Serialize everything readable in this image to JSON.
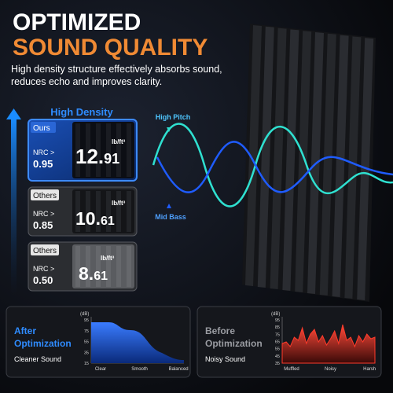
{
  "header": {
    "title_line1": "OPTIMIZED",
    "title_line2": "SOUND QUALITY",
    "subtitle": "High density structure effectively absorbs sound, reduces echo and improves clarity."
  },
  "density": {
    "label": "High Density",
    "cards": [
      {
        "tag": "Ours",
        "nrc_label": "NRC >",
        "nrc": "0.95",
        "density_main": "12.",
        "density_sub": "91",
        "unit": "lb/ft³"
      },
      {
        "tag": "Others",
        "nrc_label": "NRC >",
        "nrc": "0.85",
        "density_main": "10.",
        "density_sub": "61",
        "unit": "lb/ft³"
      },
      {
        "tag": "Others",
        "nrc_label": "NRC >",
        "nrc": "0.50",
        "density_main": "8.",
        "density_sub": "61",
        "unit": "lb/ft³"
      }
    ]
  },
  "wave": {
    "top_label": "High Pitch",
    "bottom_label": "Mid Bass"
  },
  "panels": [
    {
      "title_line1": "After",
      "title_line2": "Optimization",
      "caption": "Cleaner Sound",
      "axis_unit": "(dB)",
      "yticks": [
        "95",
        "75",
        "55",
        "35",
        "15"
      ],
      "xlabels": [
        "Clear",
        "Smooth",
        "Balanced"
      ]
    },
    {
      "title_line1": "Before",
      "title_line2": "Optimization",
      "caption": "Noisy Sound",
      "axis_unit": "(dB)",
      "yticks": [
        "95",
        "85",
        "75",
        "65",
        "55",
        "45",
        "35"
      ],
      "xlabels": [
        "Muffled",
        "Noisy",
        "Harsh"
      ]
    }
  ]
}
